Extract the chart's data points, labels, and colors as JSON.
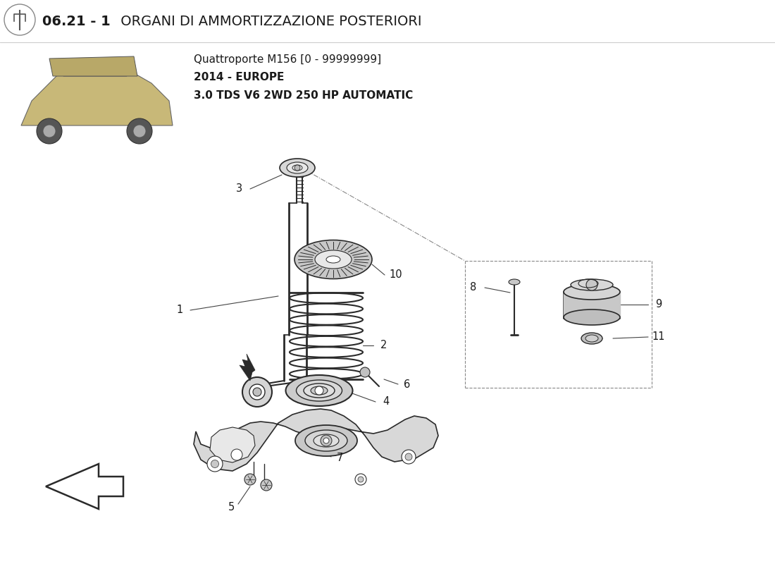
{
  "title_bold": "06.21 - 1",
  "title_regular": " ORGANI DI AMMORTIZZAZIONE POSTERIORI",
  "subtitle_line1": "Quattroporte M156 [0 - 99999999]",
  "subtitle_line2": "2014 - EUROPE",
  "subtitle_line3": "3.0 TDS V6 2WD 250 HP AUTOMATIC",
  "bg_color": "#ffffff",
  "line_color": "#2a2a2a",
  "text_color": "#1a1a1a",
  "leader_color": "#444444"
}
